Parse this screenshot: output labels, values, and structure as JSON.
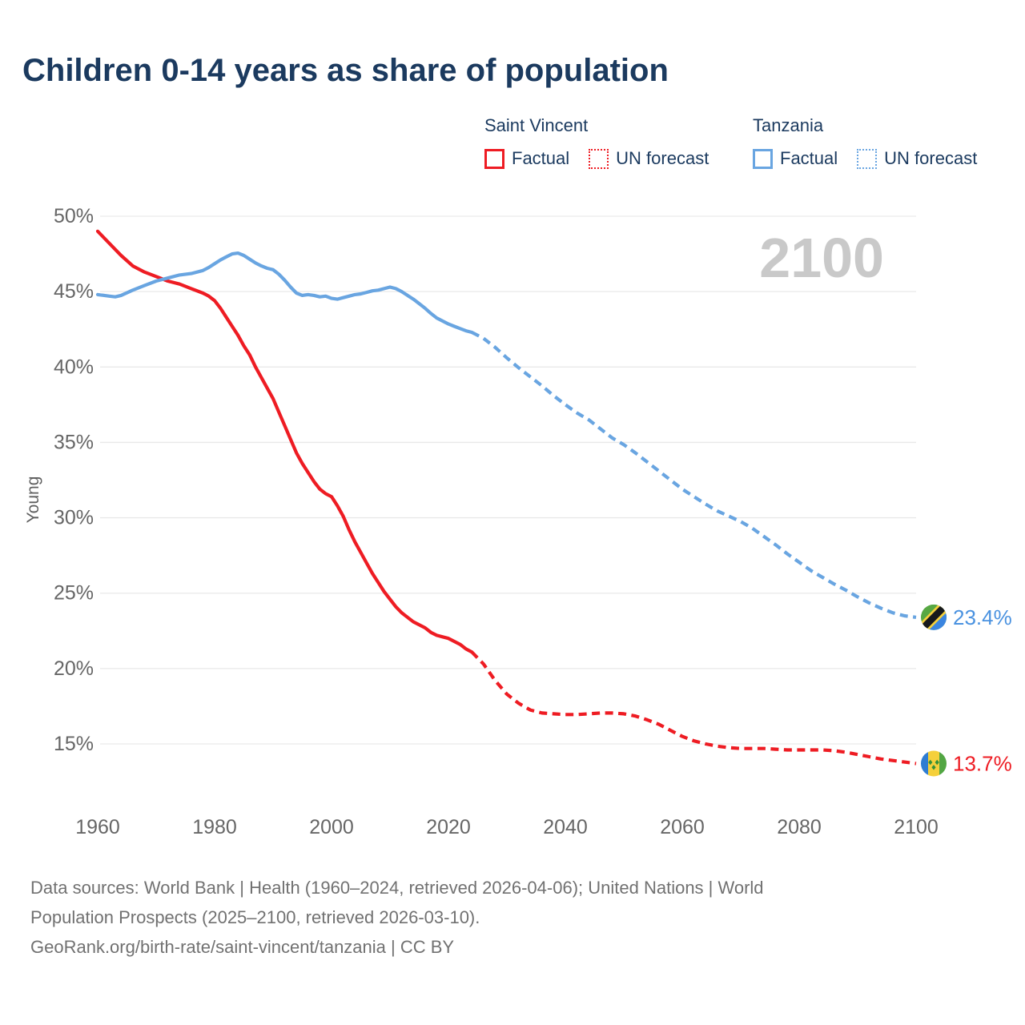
{
  "title": "Children 0-14 years as share of population",
  "watermark": "2100",
  "legend": {
    "groups": [
      {
        "name": "Saint Vincent",
        "items": [
          {
            "label": "Factual",
            "style": "solid",
            "color": "#ee1c23"
          },
          {
            "label": "UN forecast",
            "style": "dotted",
            "color": "#ee1c23"
          }
        ]
      },
      {
        "name": "Tanzania",
        "items": [
          {
            "label": "Factual",
            "style": "solid",
            "color": "#69a5e1"
          },
          {
            "label": "UN forecast",
            "style": "dotted",
            "color": "#69a5e1"
          }
        ]
      }
    ]
  },
  "chart_data": {
    "type": "line",
    "title": "Children 0-14 years as share of population",
    "xlabel": "",
    "ylabel": "Young",
    "xlim": [
      1960,
      2100
    ],
    "ylim": [
      13,
      50
    ],
    "grid": "horizontal",
    "legend_position": "top-right",
    "y_axis": {
      "label": "Young",
      "ticks": [
        {
          "value": 50,
          "label": "50%"
        },
        {
          "value": 45,
          "label": "45%"
        },
        {
          "value": 40,
          "label": "40%"
        },
        {
          "value": 35,
          "label": "35%"
        },
        {
          "value": 30,
          "label": "30%"
        },
        {
          "value": 25,
          "label": "25%"
        },
        {
          "value": 20,
          "label": "20%"
        },
        {
          "value": 15,
          "label": "15%"
        }
      ]
    },
    "x_axis": {
      "ticks": [
        {
          "value": 1960,
          "label": "1960"
        },
        {
          "value": 1980,
          "label": "1980"
        },
        {
          "value": 2000,
          "label": "2000"
        },
        {
          "value": 2020,
          "label": "2020"
        },
        {
          "value": 2040,
          "label": "2040"
        },
        {
          "value": 2060,
          "label": "2060"
        },
        {
          "value": 2080,
          "label": "2080"
        },
        {
          "value": 2100,
          "label": "2100"
        }
      ]
    },
    "series": [
      {
        "key": "saint-vincent-factual",
        "name": "Saint Vincent — Factual",
        "color": "#ee1c23",
        "dash": "solid",
        "points": [
          [
            1960,
            49.0
          ],
          [
            1962,
            48.2
          ],
          [
            1964,
            47.4
          ],
          [
            1966,
            46.7
          ],
          [
            1968,
            46.3
          ],
          [
            1970,
            46.0
          ],
          [
            1972,
            45.7
          ],
          [
            1974,
            45.5
          ],
          [
            1976,
            45.2
          ],
          [
            1978,
            44.9
          ],
          [
            1979,
            44.7
          ],
          [
            1980,
            44.4
          ],
          [
            1981,
            43.9
          ],
          [
            1982,
            43.3
          ],
          [
            1983,
            42.7
          ],
          [
            1984,
            42.1
          ],
          [
            1985,
            41.4
          ],
          [
            1986,
            40.8
          ],
          [
            1987,
            40.0
          ],
          [
            1988,
            39.3
          ],
          [
            1989,
            38.6
          ],
          [
            1990,
            37.9
          ],
          [
            1991,
            37.0
          ],
          [
            1992,
            36.1
          ],
          [
            1993,
            35.2
          ],
          [
            1994,
            34.3
          ],
          [
            1995,
            33.6
          ],
          [
            1996,
            33.0
          ],
          [
            1997,
            32.4
          ],
          [
            1998,
            31.9
          ],
          [
            1999,
            31.6
          ],
          [
            2000,
            31.4
          ],
          [
            2001,
            30.8
          ],
          [
            2002,
            30.1
          ],
          [
            2003,
            29.2
          ],
          [
            2004,
            28.4
          ],
          [
            2005,
            27.7
          ],
          [
            2006,
            27.0
          ],
          [
            2007,
            26.3
          ],
          [
            2008,
            25.7
          ],
          [
            2009,
            25.1
          ],
          [
            2010,
            24.6
          ],
          [
            2011,
            24.1
          ],
          [
            2012,
            23.7
          ],
          [
            2013,
            23.4
          ],
          [
            2014,
            23.1
          ],
          [
            2015,
            22.9
          ],
          [
            2016,
            22.7
          ],
          [
            2017,
            22.4
          ],
          [
            2018,
            22.2
          ],
          [
            2019,
            22.1
          ],
          [
            2020,
            22.0
          ],
          [
            2021,
            21.8
          ],
          [
            2022,
            21.6
          ],
          [
            2023,
            21.3
          ],
          [
            2024,
            21.1
          ]
        ]
      },
      {
        "key": "saint-vincent-forecast",
        "name": "Saint Vincent — UN forecast",
        "color": "#ee1c23",
        "dash": "dashed",
        "points": [
          [
            2024,
            21.1
          ],
          [
            2026,
            20.3
          ],
          [
            2028,
            19.2
          ],
          [
            2030,
            18.3
          ],
          [
            2032,
            17.7
          ],
          [
            2034,
            17.25
          ],
          [
            2036,
            17.05
          ],
          [
            2038,
            17.0
          ],
          [
            2040,
            16.95
          ],
          [
            2042,
            16.95
          ],
          [
            2044,
            17.0
          ],
          [
            2046,
            17.05
          ],
          [
            2048,
            17.05
          ],
          [
            2050,
            17.0
          ],
          [
            2052,
            16.85
          ],
          [
            2054,
            16.6
          ],
          [
            2056,
            16.3
          ],
          [
            2058,
            15.9
          ],
          [
            2060,
            15.5
          ],
          [
            2062,
            15.2
          ],
          [
            2064,
            15.0
          ],
          [
            2066,
            14.85
          ],
          [
            2068,
            14.75
          ],
          [
            2070,
            14.7
          ],
          [
            2072,
            14.7
          ],
          [
            2074,
            14.7
          ],
          [
            2076,
            14.65
          ],
          [
            2078,
            14.6
          ],
          [
            2080,
            14.6
          ],
          [
            2082,
            14.6
          ],
          [
            2084,
            14.6
          ],
          [
            2086,
            14.55
          ],
          [
            2088,
            14.45
          ],
          [
            2090,
            14.3
          ],
          [
            2092,
            14.15
          ],
          [
            2094,
            14.0
          ],
          [
            2096,
            13.9
          ],
          [
            2098,
            13.8
          ],
          [
            2100,
            13.7
          ]
        ]
      },
      {
        "key": "tanzania-factual",
        "name": "Tanzania — Factual",
        "color": "#69a5e1",
        "dash": "solid",
        "points": [
          [
            1960,
            44.8
          ],
          [
            1962,
            44.7
          ],
          [
            1963,
            44.65
          ],
          [
            1964,
            44.75
          ],
          [
            1966,
            45.1
          ],
          [
            1968,
            45.4
          ],
          [
            1970,
            45.7
          ],
          [
            1972,
            45.9
          ],
          [
            1974,
            46.1
          ],
          [
            1976,
            46.2
          ],
          [
            1978,
            46.4
          ],
          [
            1979,
            46.6
          ],
          [
            1980,
            46.85
          ],
          [
            1981,
            47.1
          ],
          [
            1982,
            47.3
          ],
          [
            1983,
            47.5
          ],
          [
            1984,
            47.55
          ],
          [
            1985,
            47.4
          ],
          [
            1986,
            47.15
          ],
          [
            1987,
            46.9
          ],
          [
            1988,
            46.7
          ],
          [
            1989,
            46.55
          ],
          [
            1990,
            46.45
          ],
          [
            1991,
            46.15
          ],
          [
            1992,
            45.75
          ],
          [
            1993,
            45.3
          ],
          [
            1994,
            44.9
          ],
          [
            1995,
            44.75
          ],
          [
            1996,
            44.8
          ],
          [
            1997,
            44.75
          ],
          [
            1998,
            44.65
          ],
          [
            1999,
            44.7
          ],
          [
            2000,
            44.55
          ],
          [
            2001,
            44.5
          ],
          [
            2002,
            44.6
          ],
          [
            2003,
            44.7
          ],
          [
            2004,
            44.8
          ],
          [
            2005,
            44.85
          ],
          [
            2006,
            44.95
          ],
          [
            2007,
            45.05
          ],
          [
            2008,
            45.1
          ],
          [
            2009,
            45.2
          ],
          [
            2010,
            45.3
          ],
          [
            2011,
            45.2
          ],
          [
            2012,
            45.0
          ],
          [
            2013,
            44.75
          ],
          [
            2014,
            44.5
          ],
          [
            2015,
            44.2
          ],
          [
            2016,
            43.9
          ],
          [
            2017,
            43.55
          ],
          [
            2018,
            43.25
          ],
          [
            2019,
            43.05
          ],
          [
            2020,
            42.85
          ],
          [
            2021,
            42.7
          ],
          [
            2022,
            42.55
          ],
          [
            2023,
            42.4
          ],
          [
            2024,
            42.3
          ]
        ]
      },
      {
        "key": "tanzania-forecast",
        "name": "Tanzania — UN forecast",
        "color": "#69a5e1",
        "dash": "dashed",
        "points": [
          [
            2024,
            42.3
          ],
          [
            2026,
            41.9
          ],
          [
            2028,
            41.3
          ],
          [
            2030,
            40.6
          ],
          [
            2032,
            39.95
          ],
          [
            2034,
            39.35
          ],
          [
            2036,
            38.75
          ],
          [
            2038,
            38.1
          ],
          [
            2040,
            37.5
          ],
          [
            2042,
            36.95
          ],
          [
            2044,
            36.5
          ],
          [
            2046,
            35.9
          ],
          [
            2048,
            35.3
          ],
          [
            2050,
            34.85
          ],
          [
            2052,
            34.3
          ],
          [
            2054,
            33.7
          ],
          [
            2056,
            33.1
          ],
          [
            2058,
            32.5
          ],
          [
            2060,
            31.9
          ],
          [
            2062,
            31.4
          ],
          [
            2064,
            30.9
          ],
          [
            2066,
            30.45
          ],
          [
            2068,
            30.1
          ],
          [
            2070,
            29.75
          ],
          [
            2072,
            29.3
          ],
          [
            2074,
            28.75
          ],
          [
            2076,
            28.2
          ],
          [
            2078,
            27.6
          ],
          [
            2080,
            27.05
          ],
          [
            2082,
            26.5
          ],
          [
            2084,
            26.05
          ],
          [
            2086,
            25.6
          ],
          [
            2088,
            25.2
          ],
          [
            2090,
            24.75
          ],
          [
            2092,
            24.35
          ],
          [
            2094,
            24.0
          ],
          [
            2096,
            23.7
          ],
          [
            2098,
            23.5
          ],
          [
            2100,
            23.4
          ]
        ]
      }
    ],
    "end_labels": [
      {
        "series": "Tanzania",
        "flag": "tanzania",
        "value": 23.4,
        "text": "23.4%",
        "color": "#4a92e0"
      },
      {
        "series": "Saint Vincent",
        "flag": "saint-vincent",
        "value": 13.7,
        "text": "13.7%",
        "color": "#ee1c23"
      }
    ]
  },
  "footer": {
    "line1": "Data sources: World Bank | Health (1960–2024, retrieved 2026-04-06); United Nations | World",
    "line2": "Population Prospects (2025–2100, retrieved 2026-03-10).",
    "line3": "GeoRank.org/birth-rate/saint-vincent/tanzania | CC BY"
  },
  "colors": {
    "title_navy": "#1b3a5f",
    "accent_red": "#ee1c23",
    "accent_blue": "#69a5e1",
    "grid": "#e9e9e9",
    "tick": "#666666",
    "axis_title": "#5f5f5f",
    "watermark": "#c9c9c9",
    "footer": "#717171",
    "flag_saint_vincent": {
      "blue": "#2f7dd2",
      "yellow": "#f5d03b",
      "green": "#52a643",
      "diamond": "#35903a"
    },
    "flag_tanzania": {
      "green": "#57a843",
      "yellow": "#f5d03b",
      "black": "#17191c",
      "blue": "#3b85e0"
    }
  }
}
